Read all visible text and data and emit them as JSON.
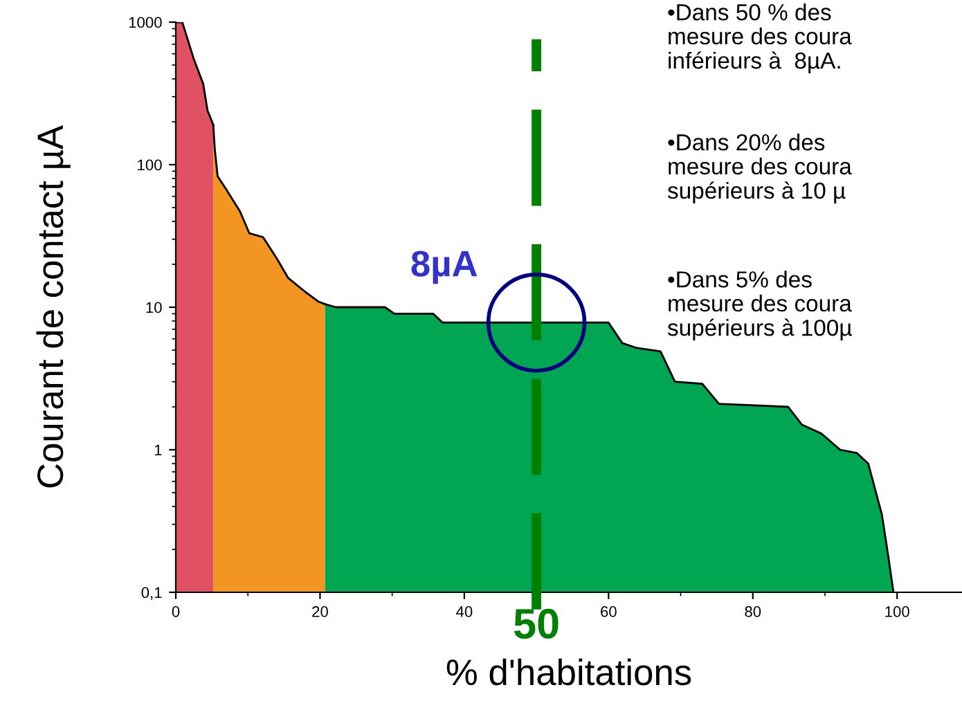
{
  "chart_data": {
    "type": "area",
    "xlabel": "% d'habitations",
    "ylabel": "Courant de contact µA",
    "log": "y",
    "xlim": [
      0,
      109
    ],
    "ylim": [
      0.1,
      1000
    ],
    "xticks": [
      0,
      20,
      40,
      60,
      80,
      100
    ],
    "yticks": [
      {
        "value": 0.1,
        "label": "0,1"
      },
      1,
      10,
      100,
      1000
    ],
    "grid": false,
    "series": [
      {
        "color": "#e05263",
        "x": [
          0,
          0.9,
          2.5,
          3.8,
          4.4,
          5.2
        ],
        "values": [
          1000,
          1000,
          550,
          370,
          240,
          190
        ]
      },
      {
        "color": "#f39522",
        "x": [
          5.2,
          5.4,
          5.8,
          7,
          8.9,
          10.2,
          12.1,
          14,
          15.6,
          17.8,
          19.7,
          20.7
        ],
        "values": [
          190,
          130,
          83,
          67,
          47,
          33,
          31,
          22,
          16,
          13,
          11,
          10.5
        ]
      },
      {
        "color": "#00a651",
        "x": [
          20.7,
          22.2,
          29,
          30.3,
          35.7,
          37,
          60,
          61.9,
          63.8,
          67.2,
          69.2,
          73,
          75.3,
          84.9,
          86.8,
          89.5,
          92.1,
          94.4,
          96,
          97.9,
          98.7,
          99.5
        ],
        "values": [
          10.5,
          10,
          10,
          9,
          9,
          7.8,
          7.8,
          5.6,
          5.2,
          4.9,
          3,
          2.9,
          2.1,
          2,
          1.5,
          1.3,
          1,
          0.95,
          0.8,
          0.35,
          0.19,
          0.1
        ]
      }
    ],
    "ref_lines": [
      {
        "axis": "x",
        "value": 50,
        "label": "50",
        "color": "#008000",
        "line_style": "dashed"
      }
    ],
    "annotations": [
      {
        "text": "8µA",
        "x": 50,
        "y": 7.8
      },
      "•Dans 50 % des\nmesure des coura\ninférieurs à  8µA.",
      "•Dans 20% des\nmesure des coura\nsupérieurs à 10 µ",
      "•Dans 5% des\nmesure des coura\nsupérieurs à 100µ"
    ]
  }
}
